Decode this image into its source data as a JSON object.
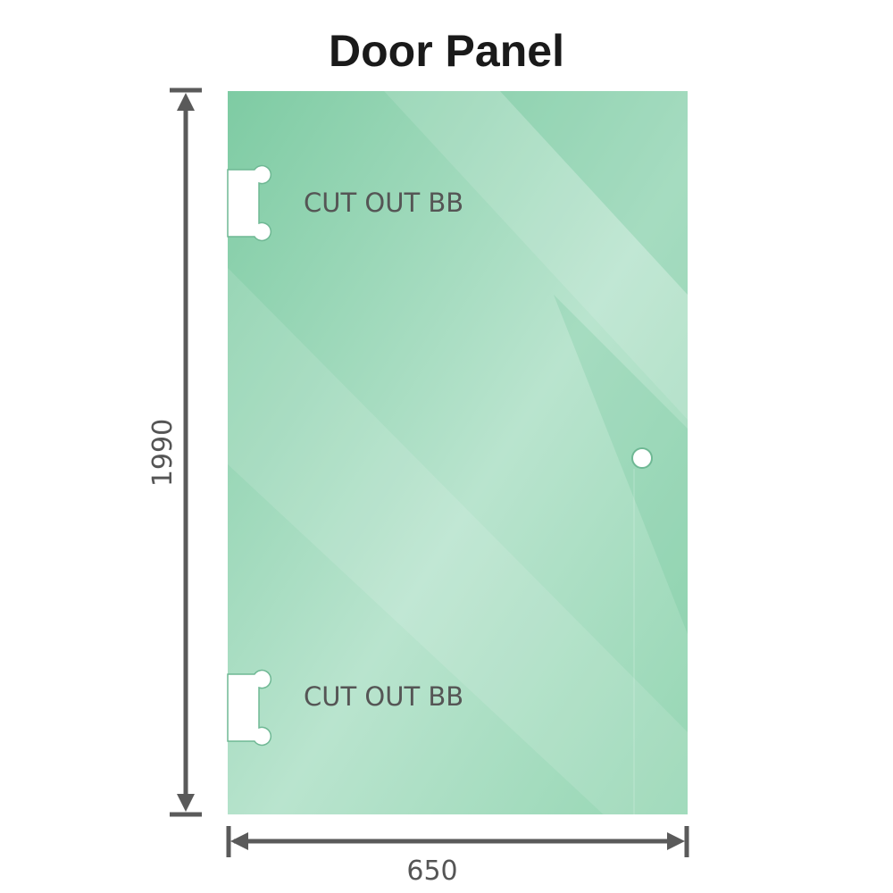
{
  "title": "Door Panel",
  "dimensions": {
    "height": "1990",
    "width": "650"
  },
  "cutouts": [
    {
      "label": "CUT OUT BB"
    },
    {
      "label": "CUT OUT BB"
    }
  ],
  "colors": {
    "glass": "#86cfa8",
    "glass_light": "#bfe6d2",
    "dimension_line": "#5a5a5a"
  }
}
